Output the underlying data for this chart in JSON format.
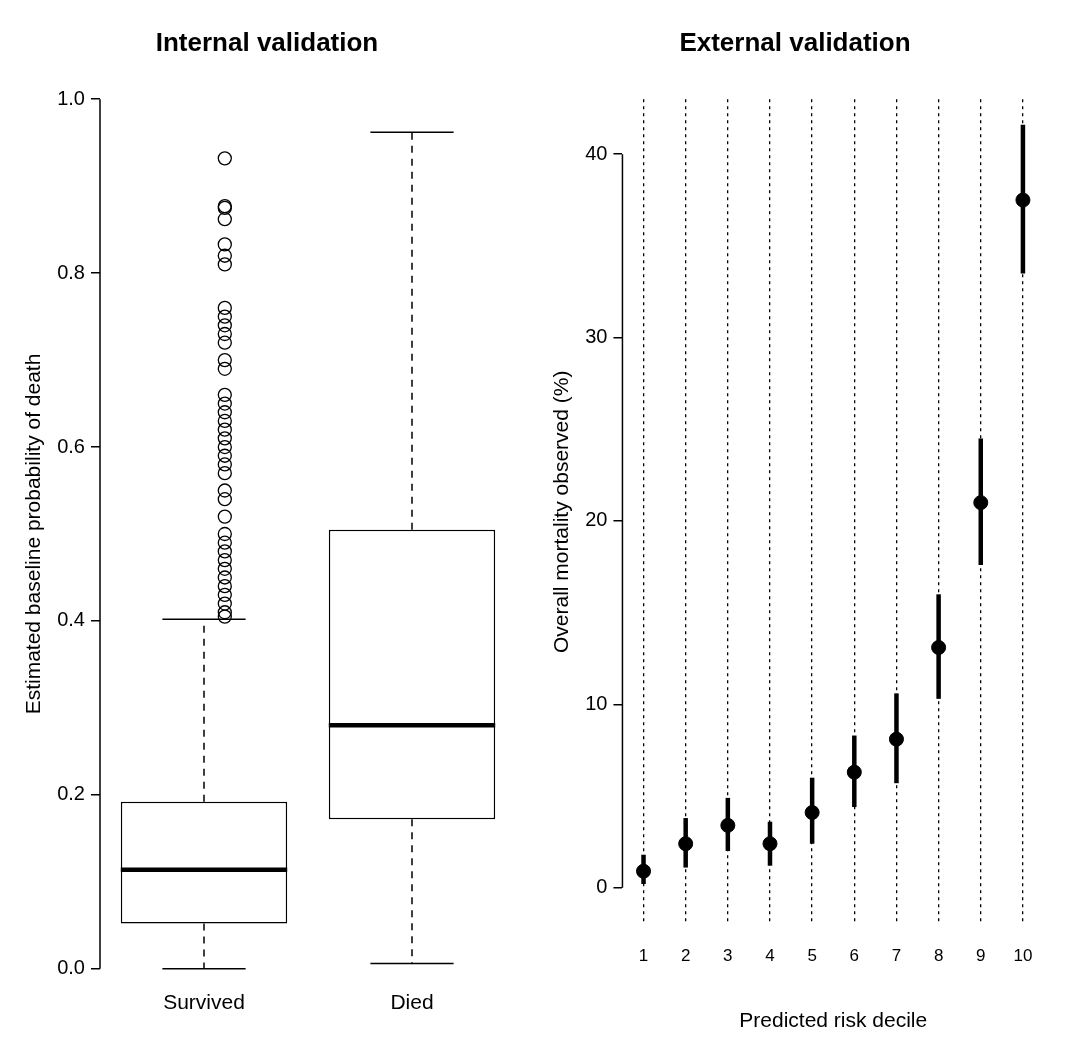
{
  "chart_data": [
    {
      "type": "box",
      "title": "Internal validation",
      "ylabel": "Estimated baseline probability of death",
      "categories": [
        "Survived",
        "Died"
      ],
      "boxes": [
        {
          "low": 0.0,
          "q1": 0.052,
          "median": 0.114,
          "q3": 0.192,
          "high": 0.402,
          "outliers": [
            0.932,
            0.877,
            0.875,
            0.862,
            0.833,
            0.82,
            0.81,
            0.76,
            0.75,
            0.74,
            0.73,
            0.72,
            0.7,
            0.69,
            0.66,
            0.65,
            0.64,
            0.63,
            0.62,
            0.61,
            0.6,
            0.59,
            0.58,
            0.57,
            0.55,
            0.54,
            0.52,
            0.5,
            0.49,
            0.48,
            0.47,
            0.46,
            0.45,
            0.44,
            0.43,
            0.42,
            0.41,
            0.405
          ]
        },
        {
          "low": 0.006,
          "q1": 0.172,
          "median": 0.28,
          "q3": 0.505,
          "high": 0.962
        }
      ],
      "ylim": [
        0,
        1
      ],
      "yticks": [
        {
          "value": 0,
          "label": "0.0"
        },
        0.2,
        0.4,
        0.6,
        0.8,
        {
          "value": 1,
          "label": "1.0"
        }
      ]
    },
    {
      "type": "scatter",
      "title": "External validation",
      "xlabel": "Predicted risk decile",
      "ylabel": "Overall mortality observed (%)",
      "categories": [
        "1",
        "2",
        "3",
        "4",
        "5",
        "6",
        "7",
        "8",
        "9",
        "10"
      ],
      "series": [
        {
          "color": "#000000",
          "values": [
            0.9,
            2.4,
            3.4,
            2.4,
            4.1,
            6.3,
            8.1,
            13.1,
            21.0,
            37.5
          ],
          "errors": [
            [
              0.2,
              1.8
            ],
            [
              1.1,
              3.8
            ],
            [
              2.0,
              4.9
            ],
            [
              1.2,
              3.6
            ],
            [
              2.4,
              6.0
            ],
            [
              4.4,
              8.3
            ],
            [
              5.7,
              10.6
            ],
            [
              10.3,
              16.0
            ],
            [
              17.6,
              24.5
            ],
            [
              33.5,
              41.6
            ]
          ]
        }
      ],
      "ylim": [
        -2,
        43
      ],
      "yticks": [
        0,
        10,
        20,
        30,
        40
      ],
      "grid": "x",
      "marker": "circle"
    }
  ]
}
